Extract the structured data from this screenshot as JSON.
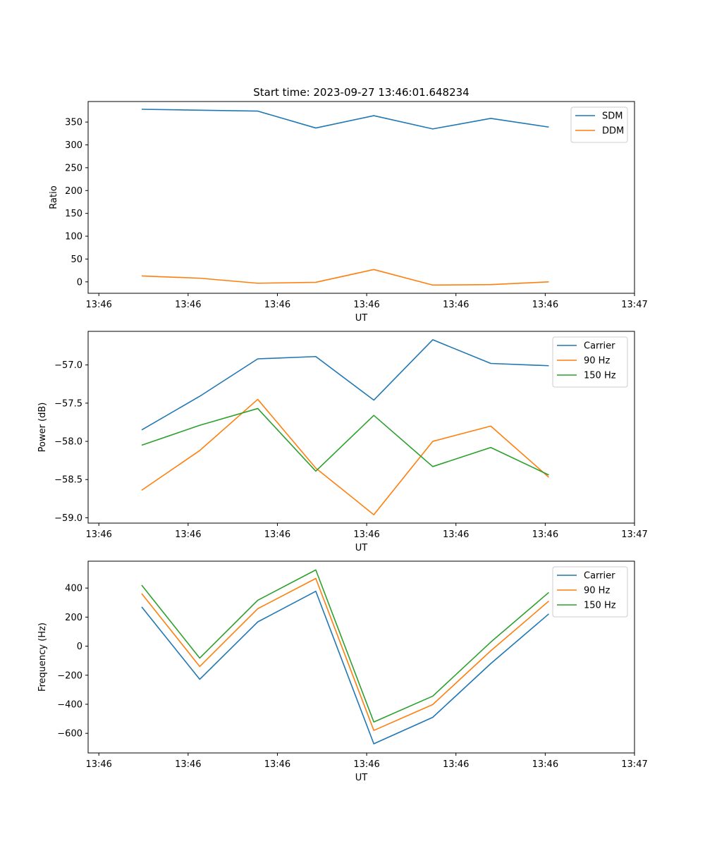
{
  "figure_title": "Start time: 2023-09-27 13:46:01.648234",
  "colors": {
    "c0": "#1f77b4",
    "c1": "#ff7f0e",
    "c2": "#2ca02c",
    "frame": "#000000",
    "legend_border": "#cccccc"
  },
  "chart_data": [
    {
      "type": "line",
      "title": "Start time: 2023-09-27 13:46:01.648234",
      "xlabel": "UT",
      "ylabel": "Ratio",
      "x_tick_labels": [
        "13:46",
        "13:46",
        "13:46",
        "13:46",
        "13:46",
        "13:46",
        "13:47"
      ],
      "x_ticks": [
        0,
        1,
        2,
        3,
        4,
        5,
        6
      ],
      "xlim": [
        -0.12,
        6.0
      ],
      "ylim": [
        -25,
        395
      ],
      "y_ticks": [
        0,
        50,
        100,
        150,
        200,
        250,
        300,
        350
      ],
      "y_tick_labels": [
        "0",
        "50",
        "100",
        "150",
        "200",
        "250",
        "300",
        "350"
      ],
      "x": [
        0.48,
        1.13,
        1.78,
        2.43,
        3.08,
        3.74,
        4.39,
        5.04
      ],
      "legend": "top-right",
      "series": [
        {
          "name": "SDM",
          "color_key": "c0",
          "values": [
            378,
            376,
            374,
            337,
            364,
            335,
            358,
            339
          ]
        },
        {
          "name": "DDM",
          "color_key": "c1",
          "values": [
            13,
            8,
            -3,
            -1,
            27,
            -7,
            -6,
            0
          ]
        }
      ]
    },
    {
      "type": "line",
      "title": "",
      "xlabel": "UT",
      "ylabel": "Power (dB)",
      "x_tick_labels": [
        "13:46",
        "13:46",
        "13:46",
        "13:46",
        "13:46",
        "13:46",
        "13:47"
      ],
      "x_ticks": [
        0,
        1,
        2,
        3,
        4,
        5,
        6
      ],
      "xlim": [
        -0.12,
        6.0
      ],
      "ylim": [
        -59.07,
        -56.56
      ],
      "y_ticks": [
        -59.0,
        -58.5,
        -58.0,
        -57.5,
        -57.0
      ],
      "y_tick_labels": [
        "−59.0",
        "−58.5",
        "−58.0",
        "−57.5",
        "−57.0"
      ],
      "x": [
        0.48,
        1.13,
        1.78,
        2.43,
        3.08,
        3.74,
        4.39,
        5.04
      ],
      "legend": "top-right",
      "series": [
        {
          "name": "Carrier",
          "color_key": "c0",
          "values": [
            -57.85,
            -57.41,
            -56.92,
            -56.89,
            -57.46,
            -56.67,
            -56.98,
            -57.01
          ]
        },
        {
          "name": "90 Hz",
          "color_key": "c1",
          "values": [
            -58.64,
            -58.12,
            -57.45,
            -58.35,
            -58.96,
            -58.0,
            -57.8,
            -58.47
          ]
        },
        {
          "name": "150 Hz",
          "color_key": "c2",
          "values": [
            -58.05,
            -57.79,
            -57.57,
            -58.39,
            -57.66,
            -58.33,
            -58.08,
            -58.44
          ]
        }
      ]
    },
    {
      "type": "line",
      "title": "",
      "xlabel": "UT",
      "ylabel": "Frequency (Hz)",
      "x_tick_labels": [
        "13:46",
        "13:46",
        "13:46",
        "13:46",
        "13:46",
        "13:46",
        "13:47"
      ],
      "x_ticks": [
        0,
        1,
        2,
        3,
        4,
        5,
        6
      ],
      "xlim": [
        -0.12,
        6.0
      ],
      "ylim": [
        -735,
        585
      ],
      "y_ticks": [
        -600,
        -400,
        -200,
        0,
        200,
        400
      ],
      "y_tick_labels": [
        "−600",
        "−400",
        "−200",
        "0",
        "200",
        "400"
      ],
      "x": [
        0.48,
        1.13,
        1.78,
        2.43,
        3.08,
        3.74,
        4.39,
        5.04
      ],
      "legend": "top-right",
      "series": [
        {
          "name": "Carrier",
          "color_key": "c0",
          "values": [
            270,
            -228,
            167,
            378,
            -672,
            -490,
            -120,
            222
          ]
        },
        {
          "name": "90 Hz",
          "color_key": "c1",
          "values": [
            362,
            -140,
            258,
            466,
            -580,
            -402,
            -32,
            310
          ]
        },
        {
          "name": "150 Hz",
          "color_key": "c2",
          "values": [
            420,
            -82,
            316,
            525,
            -522,
            -344,
            28,
            370
          ]
        }
      ]
    }
  ]
}
